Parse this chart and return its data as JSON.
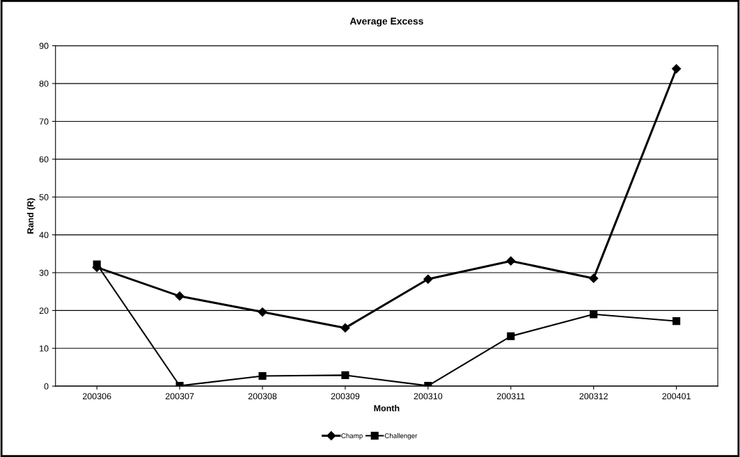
{
  "chart_data": {
    "type": "line",
    "title": "Average Excess",
    "xlabel": "Month",
    "ylabel": "Rand (R)",
    "categories": [
      "200306",
      "200307",
      "200308",
      "200309",
      "200310",
      "200311",
      "200312",
      "200401"
    ],
    "series": [
      {
        "name": "Champ",
        "color": "#000000",
        "marker": "diamond",
        "values": [
          31.4,
          23.8,
          19.6,
          15.4,
          28.3,
          33.1,
          28.5,
          83.9
        ]
      },
      {
        "name": "Challenger",
        "color": "#000000",
        "marker": "square",
        "values": [
          32.2,
          0.1,
          2.7,
          2.9,
          0.1,
          13.2,
          19.0,
          17.2
        ]
      }
    ],
    "ylim": [
      0,
      90
    ],
    "yticks": [
      0,
      10,
      20,
      30,
      40,
      50,
      60,
      70,
      80,
      90
    ],
    "grid": "y",
    "legend": "bottom",
    "line_style": "solid"
  }
}
